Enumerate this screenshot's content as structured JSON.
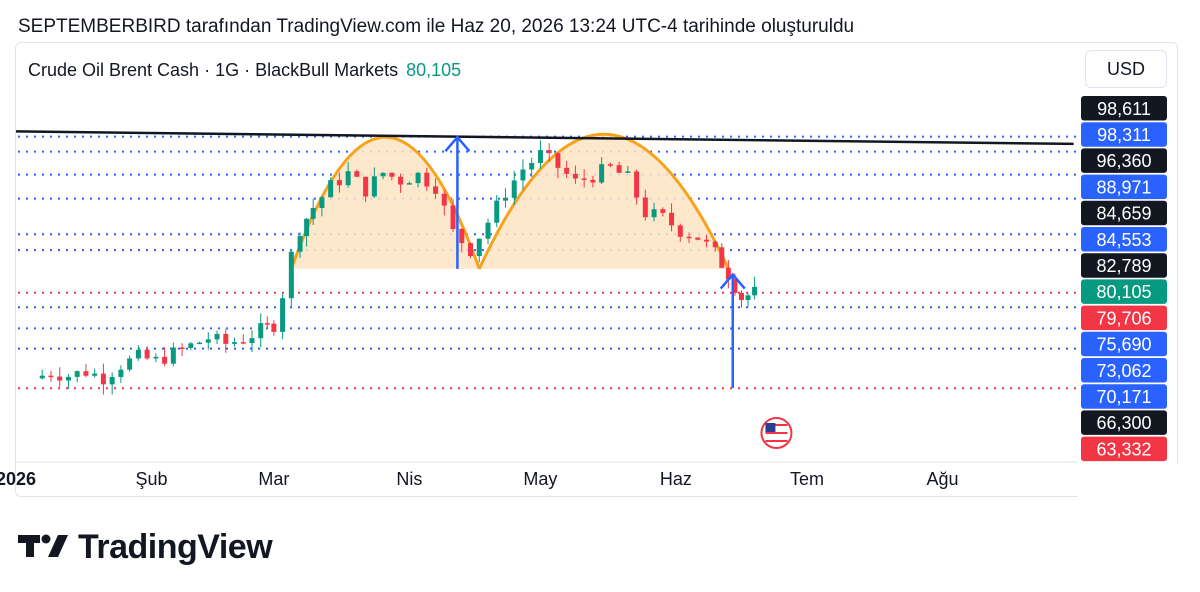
{
  "header": {
    "caption": "SEPTEMBERBIRD tarafından TradingView.com ile Haz 20, 2026 13:24 UTC-4 tarihinde oluşturuldu"
  },
  "symbol": {
    "name": "Crude Oil Brent Cash · 1G · BlackBull Markets",
    "last": "80,105"
  },
  "currency": "USD",
  "brand": "TradingView",
  "colors": {
    "up": "#089981",
    "down": "#f23645",
    "blue_level": "#2962ff",
    "red_level": "#f23645",
    "arc": "#f7a21b",
    "arc_fill": "#fde4c2",
    "neckline": "#131722"
  },
  "chart_data": {
    "type": "candlestick",
    "x_ticks": [
      "2026",
      "Şub",
      "Mar",
      "Nis",
      "May",
      "Haz",
      "Tem",
      "Ağu"
    ],
    "price_labels": [
      {
        "value": "98,611",
        "style": "black"
      },
      {
        "value": "98,311",
        "style": "blue"
      },
      {
        "value": "96,360",
        "style": "black"
      },
      {
        "value": "88,971",
        "style": "blue"
      },
      {
        "value": "84,659",
        "style": "black"
      },
      {
        "value": "84,553",
        "style": "blue"
      },
      {
        "value": "82,789",
        "style": "black"
      },
      {
        "value": "80,105",
        "style": "green"
      },
      {
        "value": "79,706",
        "style": "red"
      },
      {
        "value": "75,690",
        "style": "blue"
      },
      {
        "value": "73,062",
        "style": "blue"
      },
      {
        "value": "70,171",
        "style": "blue"
      },
      {
        "value": "66,300",
        "style": "black"
      },
      {
        "value": "63,332",
        "style": "red"
      }
    ],
    "blue_levels": [
      96.36,
      94.8,
      92.4,
      89.9,
      86.2,
      84.55,
      78.6,
      76.4,
      74.3
    ],
    "red_levels": [
      80.105,
      70.171
    ],
    "neckline": {
      "from": [
        "2026-01-01",
        96.9
      ],
      "to": [
        "2026-08-31",
        95.6
      ]
    },
    "rounded_tops": [
      {
        "start": "2026-03-05",
        "end": "2026-04-17",
        "base": 82.6,
        "peak": 96.3
      },
      {
        "start": "2026-04-17",
        "end": "2026-06-13",
        "base": 82.6,
        "peak": 96.6
      }
    ],
    "arrows": [
      {
        "date": "2026-04-12",
        "from": 82.6,
        "to": 96.3,
        "direction": "up"
      },
      {
        "date": "2026-06-14",
        "from": 70.2,
        "to": 82.0,
        "direction": "up"
      }
    ],
    "closes": [
      {
        "date": "2026-01-05",
        "c": 71.2
      },
      {
        "date": "2026-01-09",
        "c": 71.8
      },
      {
        "date": "2026-01-13",
        "c": 71.5
      },
      {
        "date": "2026-01-17",
        "c": 71.9
      },
      {
        "date": "2026-01-21",
        "c": 71.3
      },
      {
        "date": "2026-01-25",
        "c": 72.6
      },
      {
        "date": "2026-01-29",
        "c": 73.4
      },
      {
        "date": "2026-02-02",
        "c": 73.0
      },
      {
        "date": "2026-02-06",
        "c": 73.8
      },
      {
        "date": "2026-02-10",
        "c": 74.6
      },
      {
        "date": "2026-02-14",
        "c": 75.4
      },
      {
        "date": "2026-02-18",
        "c": 74.8
      },
      {
        "date": "2026-02-22",
        "c": 75.3
      },
      {
        "date": "2026-02-26",
        "c": 76.2
      },
      {
        "date": "2026-03-01",
        "c": 76.8
      },
      {
        "date": "2026-03-03",
        "c": 80.0
      },
      {
        "date": "2026-03-05",
        "c": 84.0
      },
      {
        "date": "2026-03-07",
        "c": 86.8
      },
      {
        "date": "2026-03-10",
        "c": 89.0
      },
      {
        "date": "2026-03-14",
        "c": 91.2
      },
      {
        "date": "2026-03-18",
        "c": 92.5
      },
      {
        "date": "2026-03-22",
        "c": 90.8
      },
      {
        "date": "2026-03-26",
        "c": 92.6
      },
      {
        "date": "2026-03-30",
        "c": 91.8
      },
      {
        "date": "2026-04-03",
        "c": 92.4
      },
      {
        "date": "2026-04-07",
        "c": 91.2
      },
      {
        "date": "2026-04-11",
        "c": 86.4
      },
      {
        "date": "2026-04-15",
        "c": 84.6
      },
      {
        "date": "2026-04-19",
        "c": 87.5
      },
      {
        "date": "2026-04-23",
        "c": 90.6
      },
      {
        "date": "2026-04-27",
        "c": 93.0
      },
      {
        "date": "2026-05-01",
        "c": 94.5
      },
      {
        "date": "2026-05-05",
        "c": 93.2
      },
      {
        "date": "2026-05-09",
        "c": 91.6
      },
      {
        "date": "2026-05-13",
        "c": 92.3
      },
      {
        "date": "2026-05-17",
        "c": 93.1
      },
      {
        "date": "2026-05-21",
        "c": 92.0
      },
      {
        "date": "2026-05-25",
        "c": 88.4
      },
      {
        "date": "2026-05-29",
        "c": 87.9
      },
      {
        "date": "2026-06-02",
        "c": 86.6
      },
      {
        "date": "2026-06-06",
        "c": 85.9
      },
      {
        "date": "2026-06-10",
        "c": 84.2
      },
      {
        "date": "2026-06-13",
        "c": 82.1
      },
      {
        "date": "2026-06-16",
        "c": 79.6
      },
      {
        "date": "2026-06-19",
        "c": 80.105
      }
    ]
  }
}
